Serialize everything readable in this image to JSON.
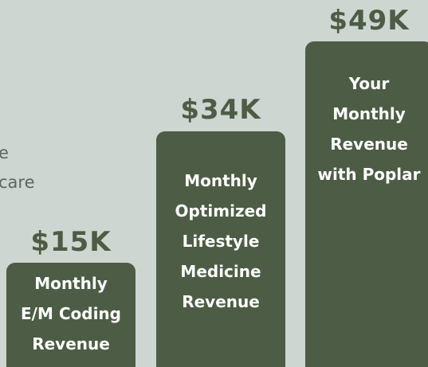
{
  "side_text": [
    "e",
    "care"
  ],
  "columns": [
    {
      "amount": "$15K",
      "lines": [
        "Monthly",
        "E/M Coding",
        "Revenue"
      ]
    },
    {
      "amount": "$34K",
      "lines": [
        "Monthly",
        "Optimized",
        "Lifestyle",
        "Medicine",
        "Revenue"
      ]
    },
    {
      "amount": "$49K",
      "lines": [
        "Your",
        "Monthly",
        "Revenue",
        "with Poplar"
      ]
    }
  ]
}
